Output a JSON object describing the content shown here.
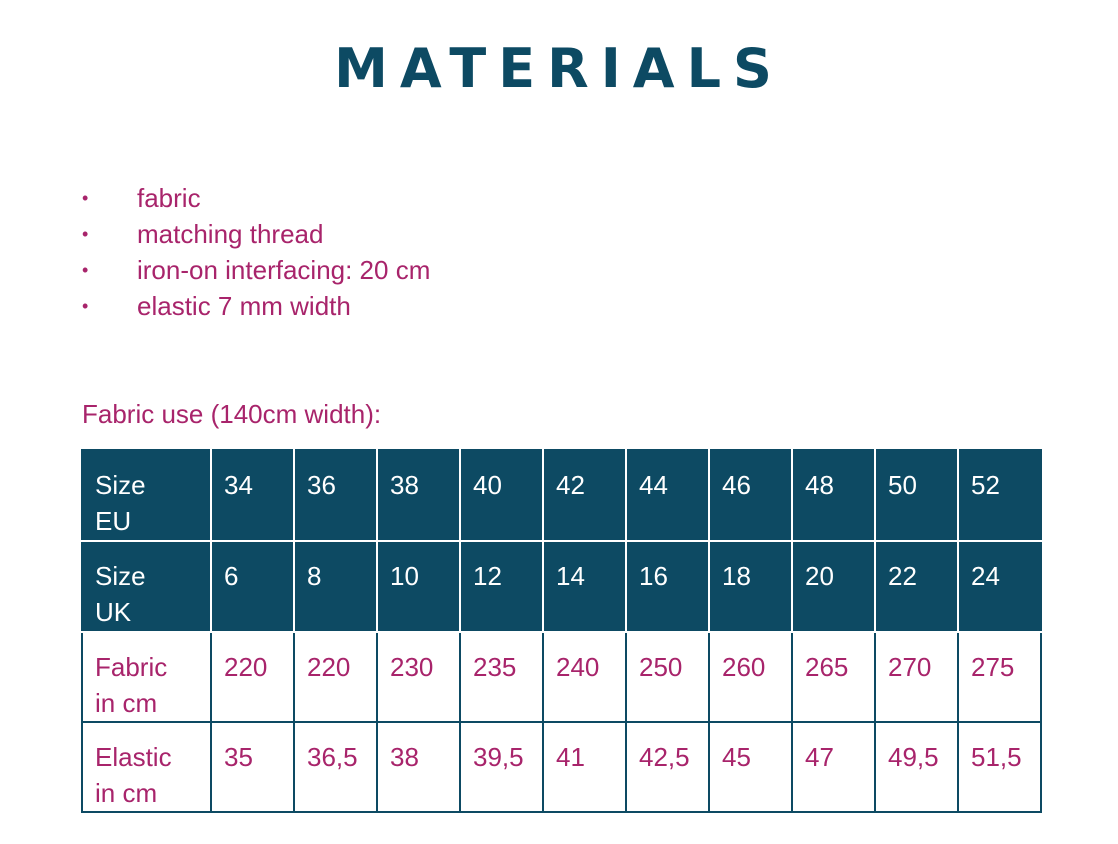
{
  "title": "MATERIALS",
  "materials": [
    {
      "bullet": "•",
      "text": "fabric"
    },
    {
      "bullet": "•",
      "text": "matching thread"
    },
    {
      "bullet": "•",
      "text": "iron-on interfacing: 20 cm"
    },
    {
      "bullet": "•",
      "text": "elastic 7 mm width"
    }
  ],
  "fabric_use_label": "Fabric use (140cm width):",
  "table": {
    "rows": [
      {
        "label": [
          "Size",
          "EU"
        ],
        "values": [
          "34",
          "36",
          "38",
          "40",
          "42",
          "44",
          "46",
          "48",
          "50",
          "52"
        ]
      },
      {
        "label": [
          "Size",
          "UK"
        ],
        "values": [
          "6",
          "8",
          "10",
          "12",
          "14",
          "16",
          "18",
          "20",
          "22",
          "24"
        ]
      },
      {
        "label": [
          "Fabric",
          "in cm"
        ],
        "values": [
          "220",
          "220",
          "230",
          "235",
          "240",
          "250",
          "260",
          "265",
          "270",
          "275"
        ]
      },
      {
        "label": [
          "Elastic",
          "in cm"
        ],
        "values": [
          "35",
          "36,5",
          "38",
          "39,5",
          "41",
          "42,5",
          "45",
          "47",
          "49,5",
          "51,5"
        ]
      }
    ]
  },
  "colors": {
    "title": "#0d4a63",
    "accent_text": "#a8246b",
    "header_fill": "#0d4a63"
  }
}
